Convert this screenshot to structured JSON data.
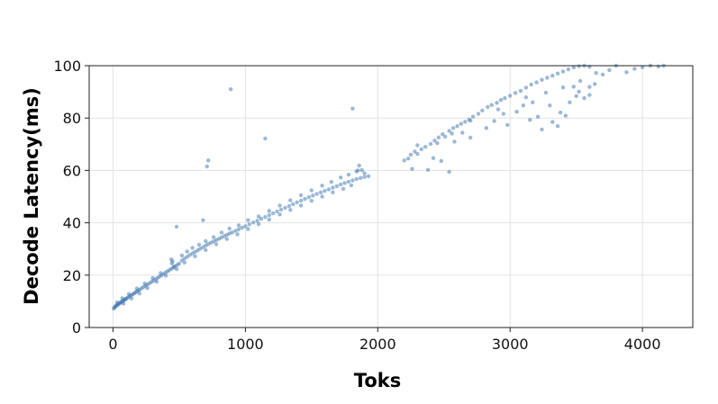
{
  "chart_data": {
    "type": "scatter",
    "xlabel": "Toks",
    "ylabel": "Decode Latency(ms)",
    "xlim": [
      -180,
      4380
    ],
    "ylim": [
      0,
      100
    ],
    "xticks": [
      0,
      1000,
      2000,
      3000,
      4000
    ],
    "yticks": [
      0,
      20,
      40,
      60,
      80,
      100
    ],
    "grid": true,
    "color": "#4a7eb5",
    "series": [
      {
        "points": [
          [
            5,
            7.2
          ],
          [
            10,
            7.6
          ],
          [
            15,
            7.9
          ],
          [
            20,
            8.1
          ],
          [
            25,
            8.4
          ],
          [
            30,
            8.5
          ],
          [
            35,
            8.8
          ],
          [
            40,
            8.9
          ],
          [
            45,
            9.1
          ],
          [
            50,
            9.3
          ],
          [
            55,
            9.5
          ],
          [
            60,
            9.6
          ],
          [
            65,
            9.8
          ],
          [
            70,
            10.0
          ],
          [
            75,
            10.2
          ],
          [
            80,
            10.3
          ],
          [
            85,
            10.5
          ],
          [
            90,
            10.7
          ],
          [
            95,
            10.9
          ],
          [
            100,
            11.0
          ],
          [
            110,
            11.4
          ],
          [
            120,
            11.7
          ],
          [
            130,
            12.1
          ],
          [
            140,
            12.4
          ],
          [
            150,
            12.7
          ],
          [
            160,
            13.1
          ],
          [
            170,
            13.4
          ],
          [
            180,
            13.8
          ],
          [
            190,
            14.1
          ],
          [
            200,
            14.4
          ],
          [
            215,
            14.9
          ],
          [
            230,
            15.4
          ],
          [
            245,
            15.9
          ],
          [
            260,
            16.4
          ],
          [
            275,
            16.9
          ],
          [
            290,
            17.4
          ],
          [
            305,
            17.9
          ],
          [
            320,
            18.4
          ],
          [
            335,
            18.9
          ],
          [
            350,
            19.4
          ],
          [
            365,
            19.9
          ],
          [
            380,
            20.4
          ],
          [
            395,
            20.9
          ],
          [
            410,
            21.4
          ],
          [
            425,
            21.9
          ],
          [
            440,
            22.4
          ],
          [
            455,
            22.9
          ],
          [
            470,
            23.4
          ],
          [
            485,
            23.9
          ],
          [
            500,
            24.4
          ],
          [
            520,
            25.6
          ],
          [
            540,
            26.3
          ],
          [
            560,
            27.0
          ],
          [
            580,
            27.7
          ],
          [
            600,
            28.3
          ],
          [
            620,
            28.9
          ],
          [
            640,
            29.5
          ],
          [
            660,
            30.1
          ],
          [
            680,
            30.7
          ],
          [
            700,
            31.3
          ],
          [
            720,
            31.9
          ],
          [
            740,
            32.4
          ],
          [
            760,
            32.9
          ],
          [
            780,
            33.4
          ],
          [
            800,
            33.9
          ],
          [
            820,
            34.4
          ],
          [
            840,
            34.9
          ],
          [
            860,
            35.4
          ],
          [
            880,
            35.9
          ],
          [
            900,
            36.3
          ],
          [
            925,
            36.9
          ],
          [
            950,
            37.5
          ],
          [
            975,
            38.1
          ],
          [
            1000,
            38.7
          ],
          [
            1030,
            39.4
          ],
          [
            1060,
            40.1
          ],
          [
            1090,
            40.8
          ],
          [
            1120,
            41.5
          ],
          [
            1150,
            42.2
          ],
          [
            1180,
            42.9
          ],
          [
            1210,
            43.6
          ],
          [
            1240,
            44.3
          ],
          [
            1270,
            45.0
          ],
          [
            1300,
            45.7
          ],
          [
            1330,
            46.4
          ],
          [
            1360,
            47.1
          ],
          [
            1390,
            47.8
          ],
          [
            1420,
            48.5
          ],
          [
            1450,
            49.1
          ],
          [
            1480,
            49.8
          ],
          [
            1510,
            50.4
          ],
          [
            1540,
            51.0
          ],
          [
            1570,
            51.6
          ],
          [
            1600,
            52.2
          ],
          [
            1630,
            52.8
          ],
          [
            1660,
            53.4
          ],
          [
            1690,
            54.0
          ],
          [
            1720,
            54.6
          ],
          [
            1750,
            55.2
          ],
          [
            1780,
            55.7
          ],
          [
            1810,
            56.2
          ],
          [
            1840,
            56.7
          ],
          [
            1870,
            57.1
          ],
          [
            1900,
            57.5
          ],
          [
            1930,
            57.8
          ],
          [
            30,
            9.6
          ],
          [
            70,
            11.2
          ],
          [
            120,
            12.8
          ],
          [
            180,
            14.9
          ],
          [
            240,
            16.8
          ],
          [
            300,
            18.9
          ],
          [
            360,
            20.8
          ],
          [
            440,
            26.0
          ],
          [
            445,
            24.5
          ],
          [
            450,
            25.3
          ],
          [
            460,
            23.2
          ],
          [
            520,
            27.5
          ],
          [
            560,
            29.0
          ],
          [
            600,
            30.4
          ],
          [
            650,
            31.6
          ],
          [
            700,
            33.0
          ],
          [
            760,
            34.5
          ],
          [
            820,
            36.3
          ],
          [
            880,
            37.8
          ],
          [
            950,
            39.0
          ],
          [
            1020,
            41.0
          ],
          [
            1100,
            42.4
          ],
          [
            1180,
            44.5
          ],
          [
            1260,
            46.6
          ],
          [
            1340,
            48.6
          ],
          [
            1420,
            50.5
          ],
          [
            1500,
            52.4
          ],
          [
            1580,
            54.2
          ],
          [
            1650,
            55.6
          ],
          [
            1720,
            57.3
          ],
          [
            1780,
            58.4
          ],
          [
            1840,
            59.6
          ],
          [
            1880,
            60.1
          ],
          [
            1860,
            61.9
          ],
          [
            1900,
            58.9
          ],
          [
            80,
            9.1
          ],
          [
            140,
            11.1
          ],
          [
            200,
            13.0
          ],
          [
            260,
            15.1
          ],
          [
            330,
            17.5
          ],
          [
            400,
            19.8
          ],
          [
            480,
            22.3
          ],
          [
            540,
            24.8
          ],
          [
            620,
            27.2
          ],
          [
            700,
            29.6
          ],
          [
            780,
            31.8
          ],
          [
            860,
            33.8
          ],
          [
            940,
            35.6
          ],
          [
            1020,
            37.6
          ],
          [
            1100,
            39.5
          ],
          [
            1180,
            41.2
          ],
          [
            1260,
            43.2
          ],
          [
            1340,
            44.9
          ],
          [
            1420,
            46.6
          ],
          [
            1500,
            48.4
          ],
          [
            1580,
            50.0
          ],
          [
            1660,
            51.6
          ],
          [
            1740,
            53.0
          ],
          [
            1800,
            54.3
          ],
          [
            720,
            63.8
          ],
          [
            710,
            61.5
          ],
          [
            890,
            91.0
          ],
          [
            1150,
            72.2
          ],
          [
            1810,
            83.6
          ],
          [
            480,
            38.5
          ],
          [
            680,
            41.0
          ],
          [
            1850,
            60.0
          ],
          [
            2200,
            63.8
          ],
          [
            2230,
            64.5
          ],
          [
            2250,
            66.0
          ],
          [
            2280,
            67.2
          ],
          [
            2300,
            66.3
          ],
          [
            2330,
            68.1
          ],
          [
            2360,
            69.0
          ],
          [
            2400,
            70.1
          ],
          [
            2430,
            71.4
          ],
          [
            2460,
            72.6
          ],
          [
            2490,
            73.8
          ],
          [
            2510,
            72.9
          ],
          [
            2540,
            75.1
          ],
          [
            2570,
            76.2
          ],
          [
            2600,
            76.9
          ],
          [
            2630,
            77.8
          ],
          [
            2660,
            78.6
          ],
          [
            2690,
            79.4
          ],
          [
            2720,
            80.5
          ],
          [
            2760,
            81.6
          ],
          [
            2790,
            82.9
          ],
          [
            2830,
            84.2
          ],
          [
            2860,
            85.0
          ],
          [
            2900,
            85.8
          ],
          [
            2930,
            86.9
          ],
          [
            2960,
            87.6
          ],
          [
            3000,
            88.5
          ],
          [
            3040,
            89.6
          ],
          [
            3080,
            90.4
          ],
          [
            3120,
            91.6
          ],
          [
            3160,
            92.8
          ],
          [
            3200,
            93.6
          ],
          [
            3240,
            94.6
          ],
          [
            3280,
            95.4
          ],
          [
            3320,
            96.2
          ],
          [
            3360,
            97.0
          ],
          [
            3400,
            97.8
          ],
          [
            3440,
            98.6
          ],
          [
            3480,
            99.3
          ],
          [
            3520,
            99.8
          ],
          [
            3560,
            100.0
          ],
          [
            3600,
            99.6
          ],
          [
            2260,
            60.6
          ],
          [
            2380,
            60.2
          ],
          [
            2480,
            63.6
          ],
          [
            2540,
            59.5
          ],
          [
            2300,
            69.6
          ],
          [
            2640,
            74.4
          ],
          [
            2700,
            72.5
          ],
          [
            2820,
            76.2
          ],
          [
            2880,
            78.9
          ],
          [
            2950,
            81.6
          ],
          [
            3050,
            82.4
          ],
          [
            3100,
            84.8
          ],
          [
            3170,
            86.0
          ],
          [
            3210,
            80.5
          ],
          [
            3300,
            84.8
          ],
          [
            3320,
            78.5
          ],
          [
            3380,
            82.1
          ],
          [
            3420,
            80.9
          ],
          [
            3450,
            86.0
          ],
          [
            3500,
            88.4
          ],
          [
            3520,
            90.1
          ],
          [
            3560,
            87.6
          ],
          [
            3600,
            91.9
          ],
          [
            3640,
            93.0
          ],
          [
            3650,
            97.2
          ],
          [
            3240,
            75.6
          ],
          [
            3360,
            76.9
          ],
          [
            3150,
            79.3
          ],
          [
            2980,
            77.4
          ],
          [
            2580,
            71.0
          ],
          [
            2420,
            64.7
          ],
          [
            3700,
            96.6
          ],
          [
            3750,
            98.3
          ],
          [
            3800,
            100.0
          ],
          [
            3880,
            97.5
          ],
          [
            3940,
            98.8
          ],
          [
            4000,
            99.4
          ],
          [
            4060,
            100.0
          ],
          [
            4120,
            99.7
          ],
          [
            4160,
            100.0
          ],
          [
            3530,
            94.2
          ],
          [
            3480,
            92.0
          ],
          [
            3270,
            89.7
          ],
          [
            3120,
            87.9
          ],
          [
            2910,
            83.3
          ],
          [
            2700,
            79.0
          ],
          [
            2560,
            74.1
          ],
          [
            2450,
            70.4
          ],
          [
            3600,
            88.8
          ],
          [
            3400,
            91.7
          ]
        ]
      }
    ]
  }
}
